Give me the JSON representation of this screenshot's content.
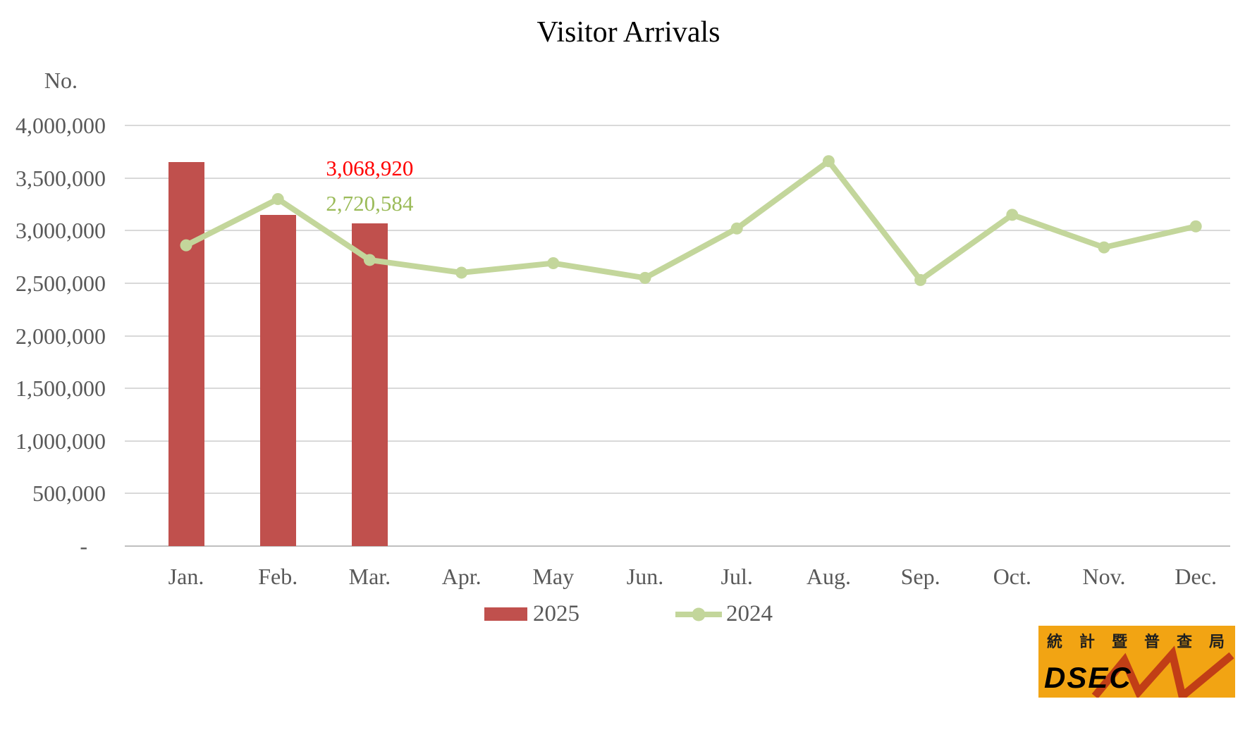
{
  "title": "Visitor Arrivals",
  "y_axis": {
    "unit_label": "No."
  },
  "legend": {
    "items": [
      {
        "label": "2025",
        "type": "bar",
        "color": "#C0504D"
      },
      {
        "label": "2024",
        "type": "line",
        "color": "#C3D69B"
      }
    ]
  },
  "logo": {
    "cjk": "統計暨普查局",
    "latin": "DSEC",
    "bg_color": "#F2A413",
    "zigzag_color": "#C13E16"
  },
  "colors": {
    "bar": "#C0504D",
    "line": "#C3D69B",
    "annotation_red": "#FF0000",
    "annotation_green": "#9BBB59",
    "axis_text": "#595959",
    "gridline": "#D9D9D9",
    "axis_line": "#BFBFBF",
    "background": "#FFFFFF"
  },
  "chart_data": {
    "type": "combo",
    "title": "Visitor Arrivals",
    "xlabel": "",
    "ylabel": "No.",
    "ylim": [
      0,
      4000000
    ],
    "grid": true,
    "legend_position": "bottom",
    "categories": [
      "Jan.",
      "Feb.",
      "Mar.",
      "Apr.",
      "May",
      "Jun.",
      "Jul.",
      "Aug.",
      "Sep.",
      "Oct.",
      "Nov.",
      "Dec."
    ],
    "series": [
      {
        "name": "2025",
        "type": "bar",
        "color": "#C0504D",
        "values": [
          3650000,
          3150000,
          3068920
        ]
      },
      {
        "name": "2024",
        "type": "line",
        "color": "#C3D69B",
        "values": [
          2860000,
          3300000,
          2720584,
          2600000,
          2690000,
          2550000,
          3020000,
          3660000,
          2530000,
          3150000,
          2840000,
          3040000
        ]
      }
    ],
    "annotations": [
      {
        "series": "2025",
        "month": "Mar.",
        "text": "3,068,920",
        "color": "#FF0000"
      },
      {
        "series": "2024",
        "month": "Mar.",
        "text": "2,720,584",
        "color": "#9BBB59"
      }
    ],
    "yticks": [
      {
        "value": 4000000,
        "label": "4,000,000"
      },
      {
        "value": 3500000,
        "label": "3,500,000"
      },
      {
        "value": 3000000,
        "label": "3,000,000"
      },
      {
        "value": 2500000,
        "label": "2,500,000"
      },
      {
        "value": 2000000,
        "label": "2,000,000"
      },
      {
        "value": 1500000,
        "label": "1,500,000"
      },
      {
        "value": 1000000,
        "label": "1,000,000"
      },
      {
        "value": 500000,
        "label": "500,000"
      },
      {
        "value": 0,
        "label": "-"
      }
    ]
  }
}
